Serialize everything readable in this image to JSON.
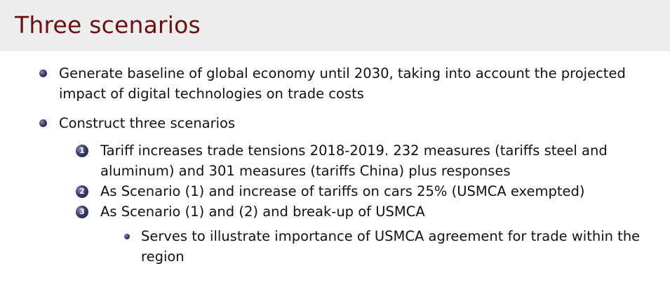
{
  "slide": {
    "title": "Three scenarios"
  },
  "bullets": [
    {
      "text": "Generate baseline of global economy until 2030, taking into account the projected impact of digital technologies on trade costs"
    },
    {
      "text": "Construct three scenarios",
      "scenarios": [
        {
          "number": "1",
          "text": "Tariff increases trade tensions 2018-2019. 232 measures (tariffs steel and aluminum) and 301 measures (tariffs China) plus responses"
        },
        {
          "number": "2",
          "text": "As Scenario (1) and increase of tariffs on cars 25% (USMCA exempted)"
        },
        {
          "number": "3",
          "text": "As Scenario (1) and (2) and break-up of USMCA",
          "sub": [
            {
              "text": "Serves to illustrate importance of USMCA agreement for trade within the region"
            }
          ]
        }
      ]
    }
  ],
  "colors": {
    "title": "#6b0f12",
    "title_bar": "#ededed",
    "bullet": "#2f3260"
  }
}
